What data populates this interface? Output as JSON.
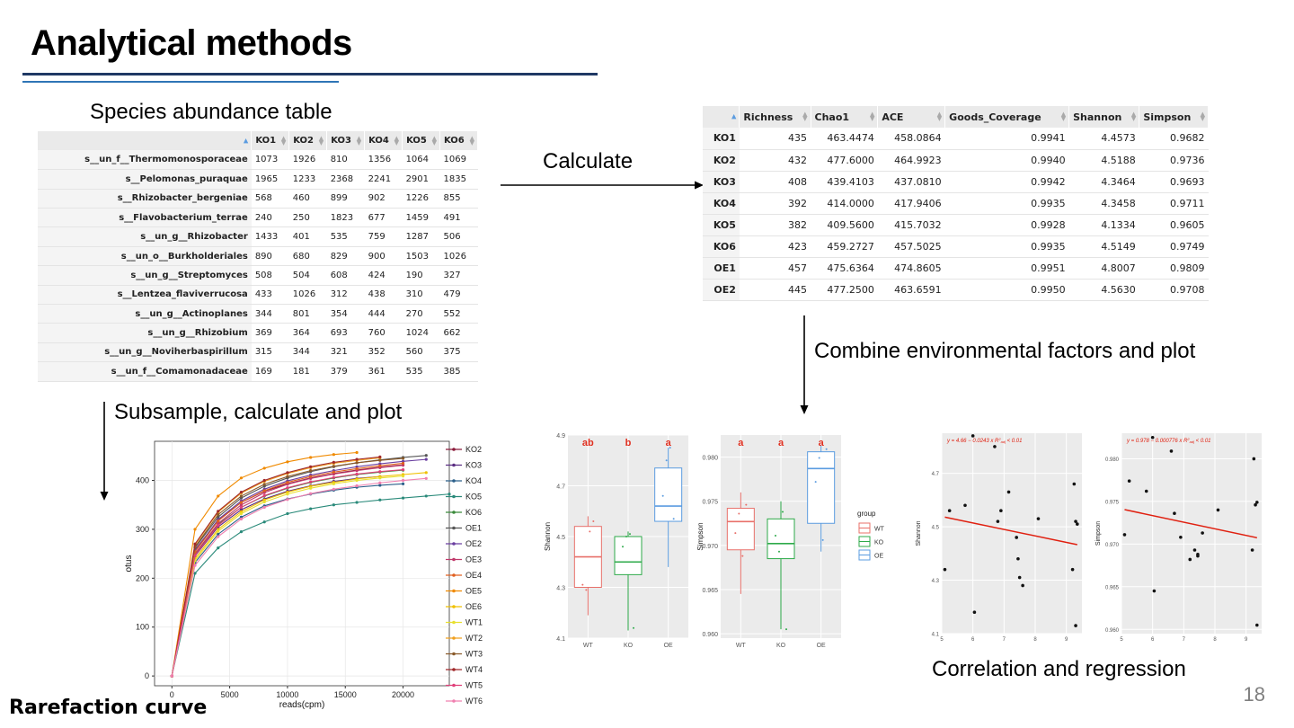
{
  "title": "Analytical methods",
  "page_number": "18",
  "labels": {
    "species_table": "Species abundance table",
    "calculate": "Calculate",
    "combine": "Combine environmental factors and plot",
    "subsample": "Subsample, calculate and plot",
    "correlation": "Correlation and regression",
    "rarefaction": "Rarefaction curve"
  },
  "abundance_table": {
    "columns": [
      "KO1",
      "KO2",
      "KO3",
      "KO4",
      "KO5",
      "KO6"
    ],
    "rows": [
      {
        "name": "s__un_f__Thermomonosporaceae",
        "values": [
          "1073",
          "1926",
          "810",
          "1356",
          "1064",
          "1069"
        ]
      },
      {
        "name": "s__Pelomonas_puraquae",
        "values": [
          "1965",
          "1233",
          "2368",
          "2241",
          "2901",
          "1835"
        ]
      },
      {
        "name": "s__Rhizobacter_bergeniae",
        "values": [
          "568",
          "460",
          "899",
          "902",
          "1226",
          "855"
        ]
      },
      {
        "name": "s__Flavobacterium_terrae",
        "values": [
          "240",
          "250",
          "1823",
          "677",
          "1459",
          "491"
        ]
      },
      {
        "name": "s__un_g__Rhizobacter",
        "values": [
          "1433",
          "401",
          "535",
          "759",
          "1287",
          "506"
        ]
      },
      {
        "name": "s__un_o__Burkholderiales",
        "values": [
          "890",
          "680",
          "829",
          "900",
          "1503",
          "1026"
        ]
      },
      {
        "name": "s__un_g__Streptomyces",
        "values": [
          "508",
          "504",
          "608",
          "424",
          "190",
          "327"
        ]
      },
      {
        "name": "s__Lentzea_flaviverrucosa",
        "values": [
          "433",
          "1026",
          "312",
          "438",
          "310",
          "479"
        ]
      },
      {
        "name": "s__un_g__Actinoplanes",
        "values": [
          "344",
          "801",
          "354",
          "444",
          "270",
          "552"
        ]
      },
      {
        "name": "s__un_g__Rhizobium",
        "values": [
          "369",
          "364",
          "693",
          "760",
          "1024",
          "662"
        ]
      },
      {
        "name": "s__un_g__Noviherbaspirillum",
        "values": [
          "315",
          "344",
          "321",
          "352",
          "560",
          "375"
        ]
      },
      {
        "name": "s__un_f__Comamonadaceae",
        "values": [
          "169",
          "181",
          "379",
          "361",
          "535",
          "385"
        ]
      }
    ]
  },
  "diversity_table": {
    "columns": [
      "Richness",
      "Chao1",
      "ACE",
      "Goods_Coverage",
      "Shannon",
      "Simpson"
    ],
    "rows": [
      {
        "name": "KO1",
        "values": [
          "435",
          "463.4474",
          "458.0864",
          "0.9941",
          "4.4573",
          "0.9682"
        ]
      },
      {
        "name": "KO2",
        "values": [
          "432",
          "477.6000",
          "464.9923",
          "0.9940",
          "4.5188",
          "0.9736"
        ]
      },
      {
        "name": "KO3",
        "values": [
          "408",
          "439.4103",
          "437.0810",
          "0.9942",
          "4.3464",
          "0.9693"
        ]
      },
      {
        "name": "KO4",
        "values": [
          "392",
          "414.0000",
          "417.9406",
          "0.9935",
          "4.3458",
          "0.9711"
        ]
      },
      {
        "name": "KO5",
        "values": [
          "382",
          "409.5600",
          "415.7032",
          "0.9928",
          "4.1334",
          "0.9605"
        ]
      },
      {
        "name": "KO6",
        "values": [
          "423",
          "459.2727",
          "457.5025",
          "0.9935",
          "4.5149",
          "0.9749"
        ]
      },
      {
        "name": "OE1",
        "values": [
          "457",
          "475.6364",
          "474.8605",
          "0.9951",
          "4.8007",
          "0.9809"
        ]
      },
      {
        "name": "OE2",
        "values": [
          "445",
          "477.2500",
          "463.6591",
          "0.9950",
          "4.5630",
          "0.9708"
        ]
      }
    ]
  },
  "chart_data": [
    {
      "type": "line",
      "xlabel": "reads(cpm)",
      "ylabel": "otus",
      "xticks": [
        "0",
        "5000",
        "10000",
        "15000",
        "20000"
      ],
      "yticks": [
        "0",
        "100",
        "200",
        "300",
        "400"
      ],
      "xlim": [
        -1500,
        24000
      ],
      "ylim": [
        -20,
        480
      ],
      "x": [
        0,
        2000,
        4000,
        6000,
        8000,
        10000,
        12000,
        14000,
        16000,
        18000,
        20000,
        22000,
        24000
      ],
      "legend": "right",
      "series": [
        {
          "name": "KO2",
          "color": "#8b1a3a",
          "values": [
            0,
            258,
            318,
            355,
            378,
            393,
            405,
            414,
            421,
            427,
            432,
            null,
            null
          ]
        },
        {
          "name": "KO3",
          "color": "#5a2d82",
          "values": [
            0,
            245,
            305,
            340,
            362,
            378,
            389,
            398,
            404,
            408,
            null,
            null,
            null
          ]
        },
        {
          "name": "KO4",
          "color": "#2b5f8a",
          "values": [
            0,
            232,
            290,
            325,
            348,
            362,
            372,
            380,
            386,
            390,
            393,
            null,
            null
          ]
        },
        {
          "name": "KO5",
          "color": "#2a8a7a",
          "values": [
            0,
            210,
            262,
            295,
            315,
            332,
            342,
            350,
            355,
            360,
            364,
            368,
            372
          ]
        },
        {
          "name": "KO6",
          "color": "#3a8a3a",
          "values": [
            0,
            248,
            310,
            345,
            368,
            384,
            396,
            405,
            412,
            417,
            421,
            null,
            null
          ]
        },
        {
          "name": "OE1",
          "color": "#555555",
          "values": [
            0,
            262,
            325,
            364,
            388,
            405,
            418,
            428,
            436,
            442,
            447,
            451,
            null
          ]
        },
        {
          "name": "OE2",
          "color": "#6a3fa0",
          "values": [
            0,
            256,
            320,
            358,
            382,
            399,
            411,
            420,
            428,
            434,
            439,
            443,
            null
          ]
        },
        {
          "name": "OE3",
          "color": "#c0386a",
          "values": [
            0,
            250,
            312,
            350,
            375,
            392,
            404,
            413,
            420,
            426,
            431,
            null,
            null
          ]
        },
        {
          "name": "OE4",
          "color": "#e06020",
          "values": [
            0,
            254,
            317,
            355,
            379,
            396,
            408,
            417,
            424,
            430,
            435,
            null,
            null
          ]
        },
        {
          "name": "OE5",
          "color": "#f08a00",
          "values": [
            0,
            300,
            368,
            405,
            425,
            438,
            447,
            453,
            457,
            null,
            null,
            null,
            null
          ]
        },
        {
          "name": "OE6",
          "color": "#f0c000",
          "values": [
            0,
            240,
            300,
            336,
            360,
            376,
            388,
            396,
            403,
            408,
            412,
            416,
            null
          ]
        },
        {
          "name": "WT1",
          "color": "#e8e030",
          "values": [
            0,
            236,
            296,
            332,
            356,
            372,
            384,
            393,
            400,
            405,
            409,
            null,
            null
          ]
        },
        {
          "name": "WT2",
          "color": "#f0a020",
          "values": [
            0,
            268,
            335,
            374,
            398,
            414,
            426,
            435,
            441,
            446,
            null,
            null,
            null
          ]
        },
        {
          "name": "WT3",
          "color": "#8a5a2a",
          "values": [
            0,
            264,
            330,
            368,
            392,
            408,
            420,
            429,
            436,
            441,
            445,
            null,
            null
          ]
        },
        {
          "name": "WT4",
          "color": "#a0282a",
          "values": [
            0,
            270,
            337,
            376,
            400,
            416,
            428,
            437,
            443,
            448,
            null,
            null,
            null
          ]
        },
        {
          "name": "WT5",
          "color": "#e0407a",
          "values": [
            0,
            246,
            308,
            345,
            369,
            385,
            397,
            406,
            413,
            418,
            422,
            null,
            null
          ]
        },
        {
          "name": "WT6",
          "color": "#f080b0",
          "values": [
            0,
            226,
            285,
            321,
            345,
            361,
            373,
            382,
            389,
            395,
            400,
            404,
            null
          ]
        }
      ]
    },
    {
      "type": "box",
      "ylabel": "Shannon",
      "categories": [
        "WT",
        "KO",
        "OE"
      ],
      "colors": [
        "#e8706a",
        "#2eaa4a",
        "#5b9ce0"
      ],
      "letters": [
        "ab",
        "b",
        "a"
      ],
      "yticks": [
        "4.1",
        "4.3",
        "4.5",
        "4.7",
        "4.9"
      ],
      "ylim": [
        4.1,
        4.9
      ],
      "boxes": [
        {
          "min": 4.19,
          "q1": 4.3,
          "median": 4.42,
          "q3": 4.54,
          "max": 4.58
        },
        {
          "min": 4.13,
          "q1": 4.35,
          "median": 4.4,
          "q3": 4.5,
          "max": 4.52
        },
        {
          "min": 4.38,
          "q1": 4.56,
          "median": 4.62,
          "q3": 4.77,
          "max": 4.85
        }
      ],
      "points": [
        [
          4.31,
          4.29,
          4.52,
          4.56
        ],
        [
          4.46,
          4.5,
          4.51,
          4.14
        ],
        [
          4.66,
          4.8,
          4.85,
          4.57
        ]
      ]
    },
    {
      "type": "box",
      "ylabel": "Simpson",
      "categories": [
        "WT",
        "KO",
        "OE"
      ],
      "colors": [
        "#e8706a",
        "#2eaa4a",
        "#5b9ce0"
      ],
      "letters": [
        "a",
        "a",
        "a"
      ],
      "yticks": [
        "0.960",
        "0.965",
        "0.970",
        "0.975",
        "0.980"
      ],
      "ylim": [
        0.9595,
        0.9825
      ],
      "legend_title": "group",
      "legend": "right",
      "boxes": [
        {
          "min": 0.9645,
          "q1": 0.9695,
          "median": 0.9727,
          "q3": 0.9742,
          "max": 0.976
        },
        {
          "min": 0.9605,
          "q1": 0.9685,
          "median": 0.9702,
          "q3": 0.973,
          "max": 0.975
        },
        {
          "min": 0.9693,
          "q1": 0.9725,
          "median": 0.9787,
          "q3": 0.9806,
          "max": 0.9813
        }
      ],
      "points": [
        [
          0.9714,
          0.9736,
          0.9688,
          0.9746
        ],
        [
          0.9711,
          0.9693,
          0.9738,
          0.9605
        ],
        [
          0.9772,
          0.9799,
          0.9706,
          0.9809
        ]
      ]
    },
    {
      "type": "scatter",
      "ylabel": "Shannon",
      "annotation_equation": "y = 4.66 − 0.0243 x",
      "annotation_r2": "< 0.01",
      "xticks": [
        "5",
        "6",
        "7",
        "8",
        "9"
      ],
      "yticks": [
        "4.1",
        "4.3",
        "4.5",
        "4.7"
      ],
      "xlim": [
        5,
        9.5
      ],
      "ylim": [
        4.1,
        4.85
      ],
      "x": [
        5.1,
        5.25,
        5.75,
        6.0,
        6.05,
        6.7,
        6.8,
        6.9,
        7.15,
        7.4,
        7.45,
        7.5,
        7.6,
        8.1,
        9.2,
        9.25,
        9.3,
        9.3,
        9.35
      ],
      "y": [
        4.34,
        4.56,
        4.58,
        4.84,
        4.18,
        4.8,
        4.52,
        4.56,
        4.63,
        4.46,
        4.38,
        4.31,
        4.28,
        4.53,
        4.34,
        4.66,
        4.52,
        4.13,
        4.51
      ],
      "line": [
        [
          5.1,
          4.536
        ],
        [
          9.35,
          4.433
        ]
      ]
    },
    {
      "type": "scatter",
      "ylabel": "Simpson",
      "annotation_equation": "y = 0.978 − 0.000776 x",
      "annotation_r2": "< 0.01",
      "xticks": [
        "5",
        "6",
        "7",
        "8",
        "9"
      ],
      "yticks": [
        "0.960",
        "0.965",
        "0.970",
        "0.975",
        "0.980"
      ],
      "xlim": [
        5,
        9.5
      ],
      "ylim": [
        0.9595,
        0.983
      ],
      "x": [
        5.1,
        5.25,
        5.8,
        6.0,
        6.05,
        6.6,
        6.7,
        6.9,
        7.2,
        7.35,
        7.45,
        7.45,
        7.6,
        8.1,
        9.2,
        9.25,
        9.3,
        9.35,
        9.35
      ],
      "y": [
        0.9711,
        0.9774,
        0.9762,
        0.9825,
        0.9645,
        0.9809,
        0.9736,
        0.9708,
        0.9682,
        0.9693,
        0.9686,
        0.9688,
        0.9713,
        0.974,
        0.9693,
        0.98,
        0.9746,
        0.9605,
        0.9749
      ],
      "line": [
        [
          5.1,
          0.97404
        ],
        [
          9.35,
          0.97074
        ]
      ]
    }
  ]
}
